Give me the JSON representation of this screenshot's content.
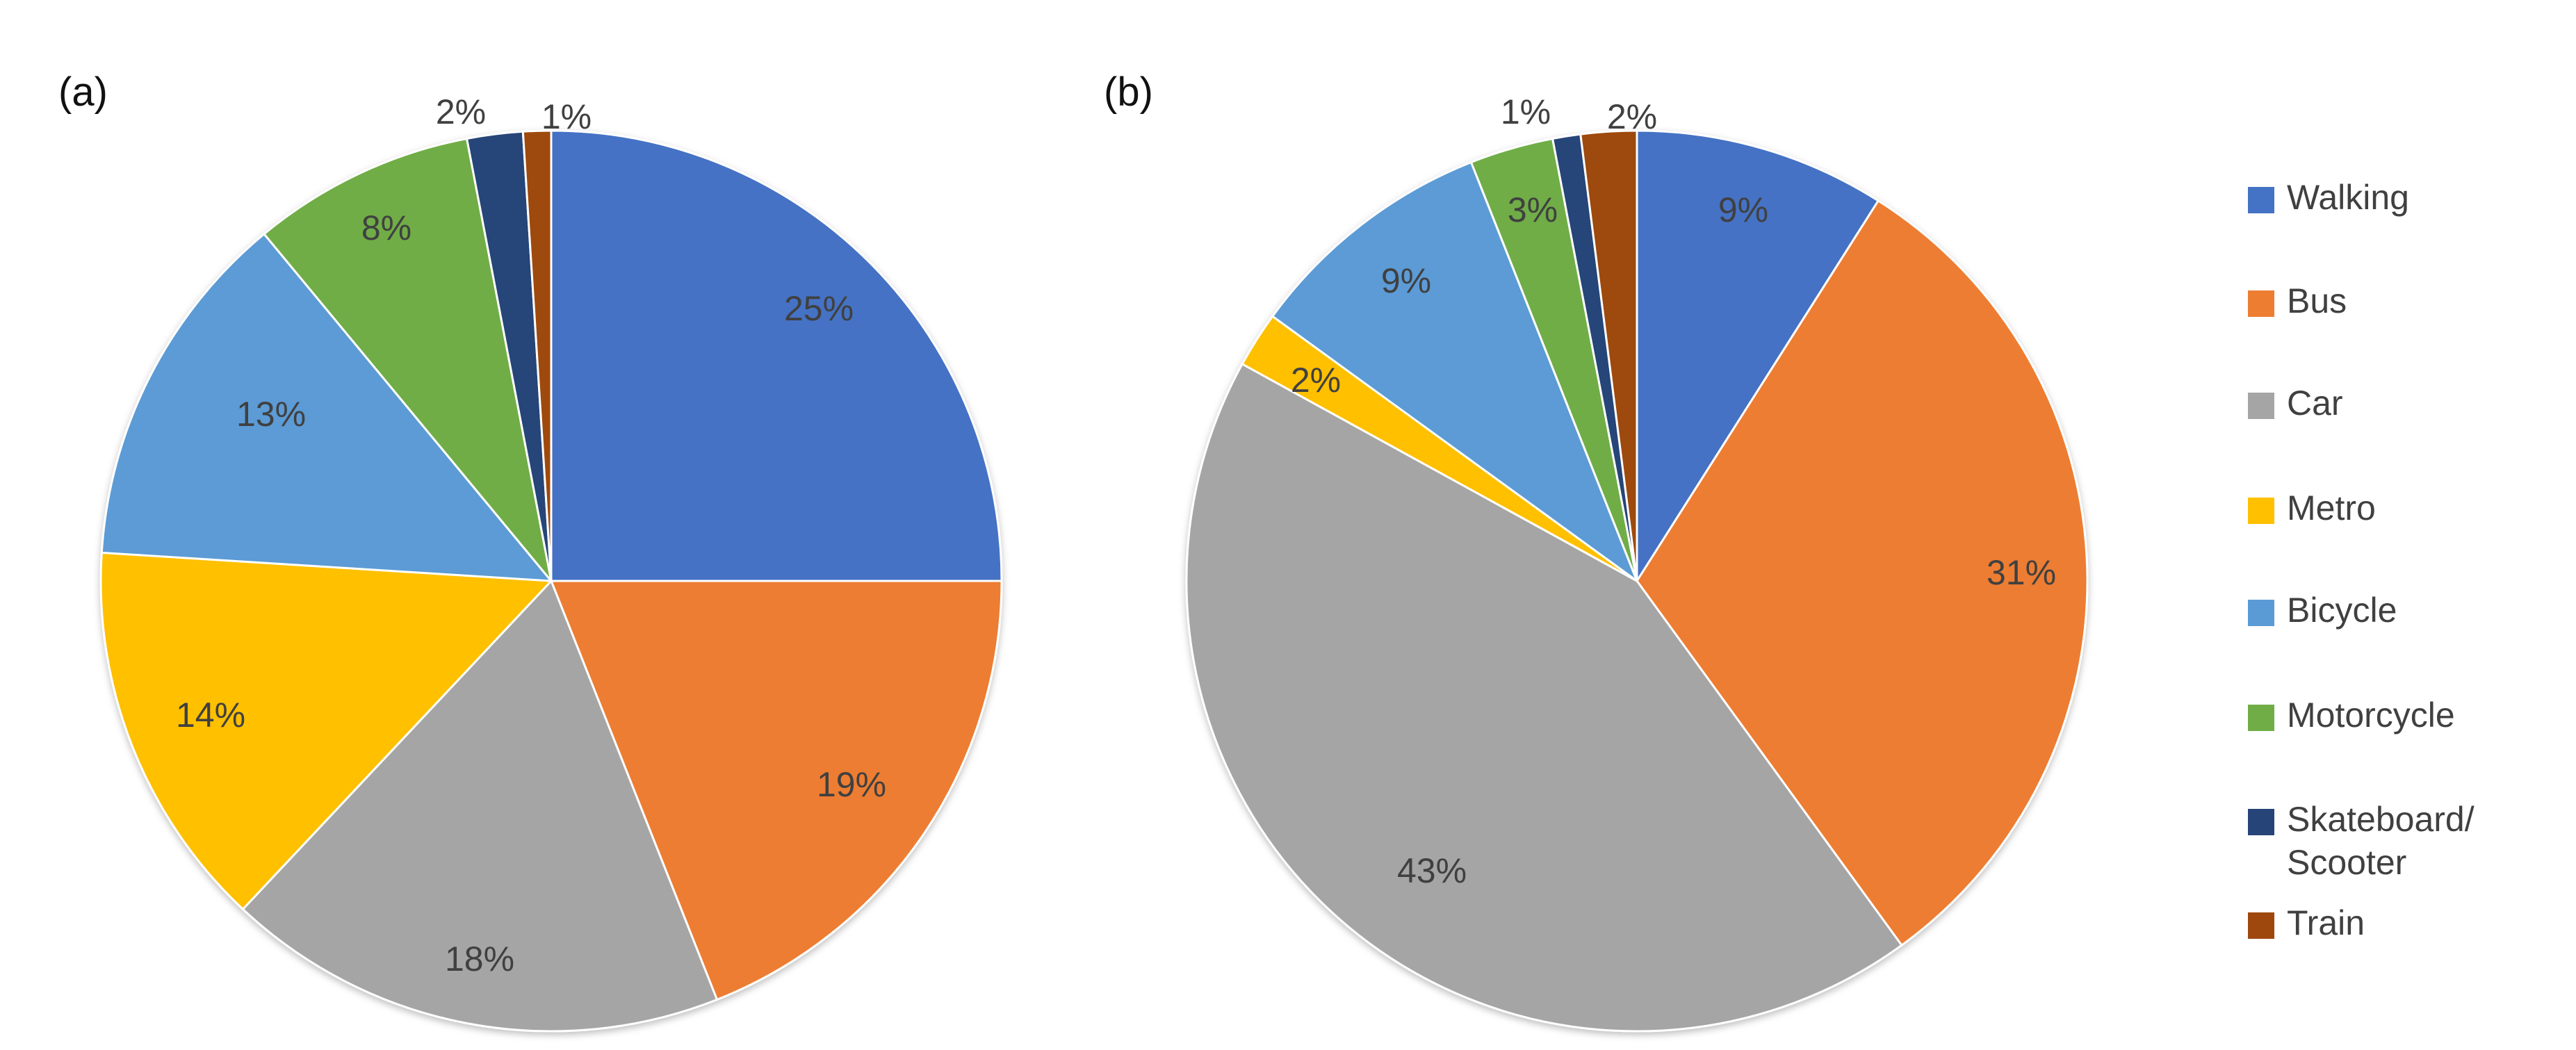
{
  "chart_data": [
    {
      "type": "pie",
      "panel_label": "(a)",
      "title": "",
      "start": "12 o'clock, clockwise",
      "categories": [
        "Walking",
        "Bus",
        "Car",
        "Metro",
        "Bicycle",
        "Motorcycle",
        "Skateboard/ Scooter",
        "Train"
      ],
      "values": [
        25,
        19,
        18,
        14,
        13,
        8,
        2,
        1
      ],
      "labels": [
        "25%",
        "19%",
        "18%",
        "14%",
        "13%",
        "8%",
        "2%",
        "1%"
      ]
    },
    {
      "type": "pie",
      "panel_label": "(b)",
      "title": "",
      "start": "12 o'clock, clockwise",
      "categories": [
        "Walking",
        "Bus",
        "Car",
        "Metro",
        "Bicycle",
        "Motorcycle",
        "Skateboard/ Scooter",
        "Train"
      ],
      "values": [
        9,
        31,
        43,
        2,
        9,
        3,
        1,
        2
      ],
      "labels": [
        "9%",
        "31%",
        "43%",
        "2%",
        "9%",
        "3%",
        "1%",
        "2%"
      ]
    }
  ],
  "legend": {
    "placement": "right",
    "items": [
      {
        "label": "Walking",
        "color": "#4472C4"
      },
      {
        "label": "Bus",
        "color": "#ED7D31"
      },
      {
        "label": "Car",
        "color": "#A5A5A5"
      },
      {
        "label": "Metro",
        "color": "#FFC000"
      },
      {
        "label": "Bicycle",
        "color": "#5B9BD5"
      },
      {
        "label": "Motorcycle",
        "color": "#70AD47"
      },
      {
        "label": "Skateboard/ Scooter",
        "color": "#264478",
        "lines": [
          "Skateboard/",
          "Scooter"
        ]
      },
      {
        "label": "Train",
        "color": "#9E480E"
      }
    ]
  },
  "colors": [
    "#4472C4",
    "#ED7D31",
    "#A5A5A5",
    "#FFC000",
    "#5B9BD5",
    "#70AD47",
    "#264478",
    "#9E480E"
  ]
}
